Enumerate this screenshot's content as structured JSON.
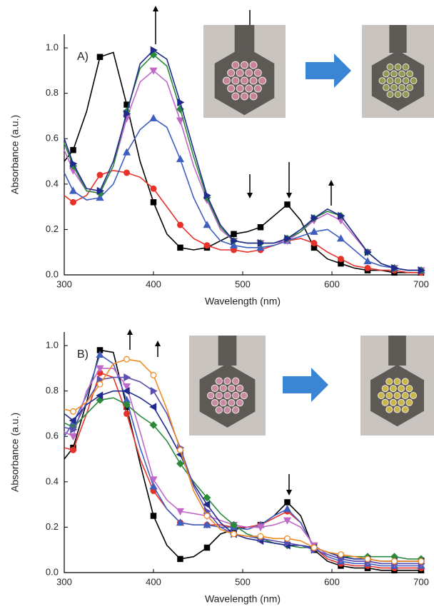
{
  "chart_data": [
    {
      "type": "line",
      "label": "A)",
      "x_label": "Wavelength (nm)",
      "y_label": "Absorbance (a.u.)",
      "xlim": [
        300,
        700
      ],
      "ylim": [
        0,
        1.06
      ],
      "xticks": [
        300,
        400,
        500,
        600,
        700
      ],
      "yticks": [
        {
          "value": 0,
          "label": "0.0"
        },
        0.2,
        0.4,
        0.6,
        0.8,
        {
          "value": 1,
          "label": "1.0"
        }
      ],
      "x": [
        300,
        310,
        325,
        340,
        355,
        370,
        385,
        400,
        415,
        430,
        445,
        460,
        475,
        490,
        505,
        520,
        535,
        550,
        565,
        580,
        595,
        610,
        625,
        640,
        655,
        670,
        685,
        700
      ],
      "series": [
        {
          "color": "#000000",
          "marker": "square",
          "values": [
            0.5,
            0.55,
            0.72,
            0.96,
            0.98,
            0.75,
            0.5,
            0.32,
            0.18,
            0.12,
            0.11,
            0.12,
            0.15,
            0.18,
            0.19,
            0.21,
            0.26,
            0.31,
            0.24,
            0.12,
            0.07,
            0.05,
            0.03,
            0.02,
            0.02,
            0.01,
            0.01,
            0.01
          ]
        },
        {
          "color": "#e8312a",
          "marker": "circle",
          "values": [
            0.35,
            0.32,
            0.35,
            0.44,
            0.46,
            0.45,
            0.43,
            0.38,
            0.3,
            0.22,
            0.16,
            0.13,
            0.11,
            0.11,
            0.1,
            0.11,
            0.13,
            0.15,
            0.16,
            0.14,
            0.1,
            0.07,
            0.04,
            0.03,
            0.02,
            0.02,
            0.01,
            0.01
          ]
        },
        {
          "color": "#3f5fbf",
          "marker": "triangle-up",
          "values": [
            0.45,
            0.37,
            0.33,
            0.34,
            0.4,
            0.54,
            0.64,
            0.69,
            0.65,
            0.51,
            0.34,
            0.22,
            0.15,
            0.13,
            0.12,
            0.12,
            0.13,
            0.15,
            0.17,
            0.19,
            0.2,
            0.16,
            0.11,
            0.06,
            0.04,
            0.03,
            0.02,
            0.02
          ]
        },
        {
          "color": "#c068c8",
          "marker": "triangle-down",
          "values": [
            0.55,
            0.46,
            0.37,
            0.36,
            0.48,
            0.69,
            0.85,
            0.9,
            0.85,
            0.68,
            0.48,
            0.33,
            0.2,
            0.15,
            0.14,
            0.14,
            0.14,
            0.15,
            0.19,
            0.24,
            0.27,
            0.24,
            0.17,
            0.1,
            0.05,
            0.03,
            0.02,
            0.02
          ]
        },
        {
          "color": "#2a8a3a",
          "marker": "diamond",
          "values": [
            0.58,
            0.48,
            0.37,
            0.36,
            0.48,
            0.72,
            0.91,
            0.97,
            0.92,
            0.73,
            0.52,
            0.34,
            0.21,
            0.15,
            0.14,
            0.14,
            0.14,
            0.16,
            0.19,
            0.25,
            0.28,
            0.26,
            0.18,
            0.1,
            0.05,
            0.03,
            0.02,
            0.02
          ]
        },
        {
          "color": "#1f2a8c",
          "marker": "triangle-right",
          "values": [
            0.6,
            0.49,
            0.38,
            0.37,
            0.5,
            0.71,
            0.93,
            0.99,
            0.95,
            0.76,
            0.55,
            0.35,
            0.22,
            0.15,
            0.14,
            0.14,
            0.14,
            0.16,
            0.2,
            0.25,
            0.29,
            0.26,
            0.18,
            0.1,
            0.05,
            0.03,
            0.02,
            0.02
          ]
        }
      ]
    },
    {
      "type": "line",
      "label": "B)",
      "x_label": "Wavelength (nm)",
      "y_label": "Absorbance (a.u.)",
      "xlim": [
        300,
        700
      ],
      "ylim": [
        0,
        1.06
      ],
      "xticks": [
        300,
        400,
        500,
        600,
        700
      ],
      "yticks": [
        {
          "value": 0,
          "label": "0.0"
        },
        0.2,
        0.4,
        0.6,
        0.8,
        {
          "value": 1,
          "label": "1.0"
        }
      ],
      "x": [
        300,
        310,
        325,
        340,
        355,
        370,
        385,
        400,
        415,
        430,
        445,
        460,
        475,
        490,
        505,
        520,
        535,
        550,
        565,
        580,
        595,
        610,
        625,
        640,
        655,
        670,
        685,
        700
      ],
      "series": [
        {
          "color": "#000000",
          "marker": "square",
          "values": [
            0.5,
            0.55,
            0.75,
            0.98,
            0.97,
            0.73,
            0.48,
            0.25,
            0.12,
            0.06,
            0.07,
            0.11,
            0.17,
            0.19,
            0.2,
            0.21,
            0.25,
            0.31,
            0.25,
            0.1,
            0.05,
            0.03,
            0.02,
            0.02,
            0.01,
            0.01,
            0.01,
            0.01
          ]
        },
        {
          "color": "#e8312a",
          "marker": "circle",
          "values": [
            0.55,
            0.54,
            0.7,
            0.88,
            0.86,
            0.7,
            0.5,
            0.36,
            0.28,
            0.22,
            0.21,
            0.21,
            0.21,
            0.2,
            0.2,
            0.21,
            0.24,
            0.27,
            0.22,
            0.11,
            0.06,
            0.04,
            0.03,
            0.03,
            0.02,
            0.02,
            0.02,
            0.02
          ]
        },
        {
          "color": "#3f5fbf",
          "marker": "triangle-up",
          "values": [
            0.6,
            0.66,
            0.78,
            0.96,
            0.92,
            0.76,
            0.55,
            0.38,
            0.28,
            0.22,
            0.21,
            0.21,
            0.2,
            0.2,
            0.19,
            0.21,
            0.25,
            0.28,
            0.22,
            0.11,
            0.07,
            0.05,
            0.04,
            0.04,
            0.03,
            0.03,
            0.03,
            0.03
          ]
        },
        {
          "color": "#c068c8",
          "marker": "triangle-down",
          "values": [
            0.62,
            0.6,
            0.8,
            0.9,
            0.9,
            0.82,
            0.62,
            0.41,
            0.32,
            0.27,
            0.26,
            0.25,
            0.23,
            0.21,
            0.2,
            0.2,
            0.21,
            0.23,
            0.2,
            0.12,
            0.08,
            0.06,
            0.05,
            0.05,
            0.04,
            0.04,
            0.04,
            0.04
          ]
        },
        {
          "color": "#2a8a3a",
          "marker": "diamond",
          "values": [
            0.66,
            0.64,
            0.7,
            0.76,
            0.77,
            0.74,
            0.69,
            0.65,
            0.58,
            0.48,
            0.4,
            0.33,
            0.26,
            0.21,
            0.17,
            0.15,
            0.13,
            0.12,
            0.11,
            0.11,
            0.09,
            0.07,
            0.07,
            0.07,
            0.07,
            0.07,
            0.06,
            0.06
          ]
        },
        {
          "color": "#1f2a8c",
          "marker": "triangle-left",
          "values": [
            0.7,
            0.67,
            0.74,
            0.78,
            0.8,
            0.8,
            0.77,
            0.73,
            0.63,
            0.52,
            0.39,
            0.3,
            0.22,
            0.17,
            0.15,
            0.14,
            0.13,
            0.12,
            0.12,
            0.11,
            0.09,
            0.07,
            0.06,
            0.06,
            0.05,
            0.05,
            0.05,
            0.05
          ]
        },
        {
          "color": "#5a4fb0",
          "marker": "triangle-right",
          "values": [
            0.64,
            0.63,
            0.75,
            0.85,
            0.86,
            0.86,
            0.84,
            0.8,
            0.7,
            0.55,
            0.38,
            0.27,
            0.2,
            0.17,
            0.16,
            0.15,
            0.14,
            0.13,
            0.12,
            0.1,
            0.08,
            0.06,
            0.05,
            0.05,
            0.04,
            0.04,
            0.04,
            0.04
          ]
        },
        {
          "color": "#f08a24",
          "marker": "circle-open",
          "values": [
            0.72,
            0.71,
            0.75,
            0.83,
            0.92,
            0.94,
            0.93,
            0.87,
            0.72,
            0.54,
            0.36,
            0.25,
            0.19,
            0.17,
            0.16,
            0.16,
            0.15,
            0.15,
            0.14,
            0.11,
            0.09,
            0.08,
            0.07,
            0.06,
            0.05,
            0.05,
            0.05,
            0.05
          ]
        }
      ]
    }
  ]
}
